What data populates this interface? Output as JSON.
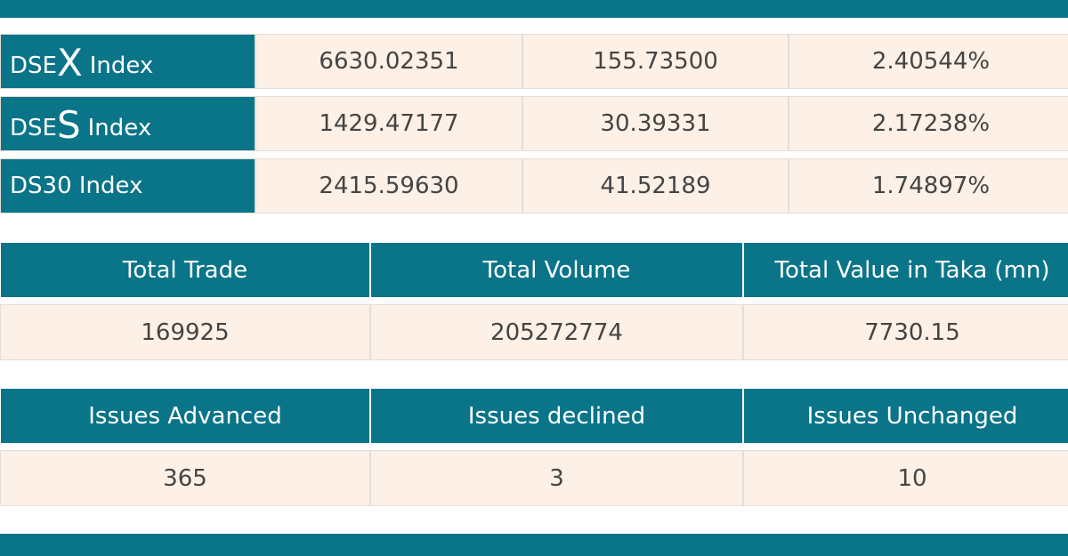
{
  "indices": [
    {
      "prefix": "DSE",
      "letter": "X",
      "suffix": "Index",
      "value": "6630.02351",
      "change": "155.73500",
      "percent": "2.40544%"
    },
    {
      "prefix": "DSE",
      "letter": "S",
      "suffix": "Index",
      "value": "1429.47177",
      "change": "30.39331",
      "percent": "2.17238%"
    },
    {
      "name": "DS30 Index",
      "value": "2415.59630",
      "change": "41.52189",
      "percent": "1.74897%"
    }
  ],
  "trade": {
    "headers": [
      "Total Trade",
      "Total Volume",
      "Total Value in Taka (mn)"
    ],
    "values": [
      "169925",
      "205272774",
      "7730.15"
    ]
  },
  "issues": {
    "headers": [
      "Issues Advanced",
      "Issues declined",
      "Issues Unchanged"
    ],
    "values": [
      "365",
      "3",
      "10"
    ]
  }
}
